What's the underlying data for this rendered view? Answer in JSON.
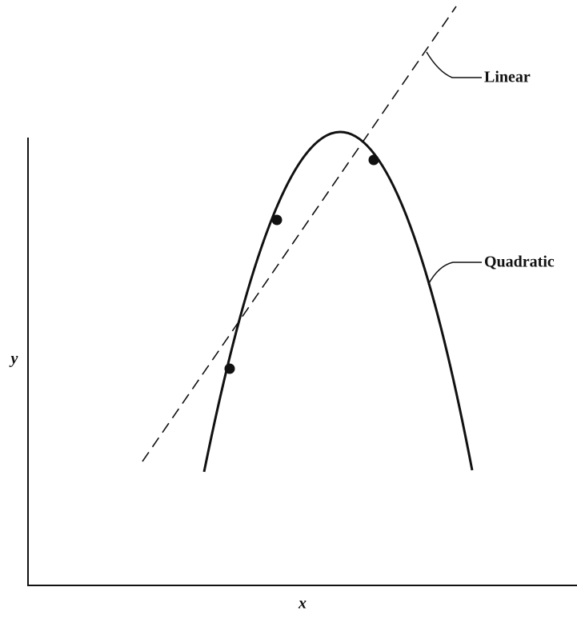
{
  "labels": {
    "linear": "Linear",
    "quadratic": "Quadratic"
  },
  "axes": {
    "x": "x",
    "y": "y"
  }
}
